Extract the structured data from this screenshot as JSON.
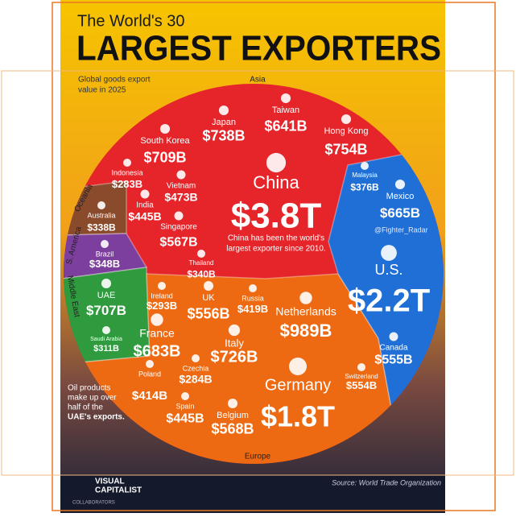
{
  "header": {
    "title_line1": "The World's 30",
    "title_line2": "LARGEST EXPORTERS",
    "subtitle": [
      "Global goods export",
      "value in 2025"
    ]
  },
  "regions": [
    "Asia",
    "Oceania",
    "S. America",
    "Middle East",
    "Europe"
  ],
  "countries": [
    {
      "name": "Japan",
      "value": "$738B"
    },
    {
      "name": "Taiwan",
      "value": "$641B"
    },
    {
      "name": "Hong Kong",
      "value": "$754B"
    },
    {
      "name": "South Korea",
      "value": "$709B"
    },
    {
      "name": "Indonesia",
      "value": "$283B"
    },
    {
      "name": "Vietnam",
      "value": "$473B"
    },
    {
      "name": "India",
      "value": "$445B"
    },
    {
      "name": "Malaysia",
      "value": "$376B"
    },
    {
      "name": "China",
      "value": "$3.8T"
    },
    {
      "name": "Singapore",
      "value": "$567B"
    },
    {
      "name": "Thailand",
      "value": "$340B"
    },
    {
      "name": "Australia",
      "value": "$338B"
    },
    {
      "name": "Brazil",
      "value": "$348B"
    },
    {
      "name": "Mexico",
      "value": "$665B"
    },
    {
      "name": "U.S.",
      "value": "$2.2T"
    },
    {
      "name": "UAE",
      "value": "$707B"
    },
    {
      "name": "Saudi Arabia",
      "value": "$311B"
    },
    {
      "name": "Ireland",
      "value": "$293B"
    },
    {
      "name": "UK",
      "value": "$556B"
    },
    {
      "name": "Russia",
      "value": "$419B"
    },
    {
      "name": "Netherlands",
      "value": "$989B"
    },
    {
      "name": "France",
      "value": "$683B"
    },
    {
      "name": "Italy",
      "value": "$726B"
    },
    {
      "name": "Canada",
      "value": "$555B"
    },
    {
      "name": "Czechia",
      "value": "$284B"
    },
    {
      "name": "Switzerland",
      "value": "$554B"
    },
    {
      "name": "Germany",
      "value": "$1.8T"
    },
    {
      "name": "Poland",
      "value": "$414B"
    },
    {
      "name": "Spain",
      "value": "$445B"
    },
    {
      "name": "Belgium",
      "value": "$568B"
    }
  ],
  "china_note": [
    "China has been the world's",
    "largest exporter since 2010."
  ],
  "uae_note": [
    "Oil products",
    "make up over",
    "half of the",
    "UAE's exports."
  ],
  "watermark": "@Fighter_Radar",
  "footer": {
    "brand": [
      "VISUAL",
      "CAPITALIST"
    ],
    "collaborators": "COLLABORATORS",
    "source": "Source: World Trade Organization"
  }
}
